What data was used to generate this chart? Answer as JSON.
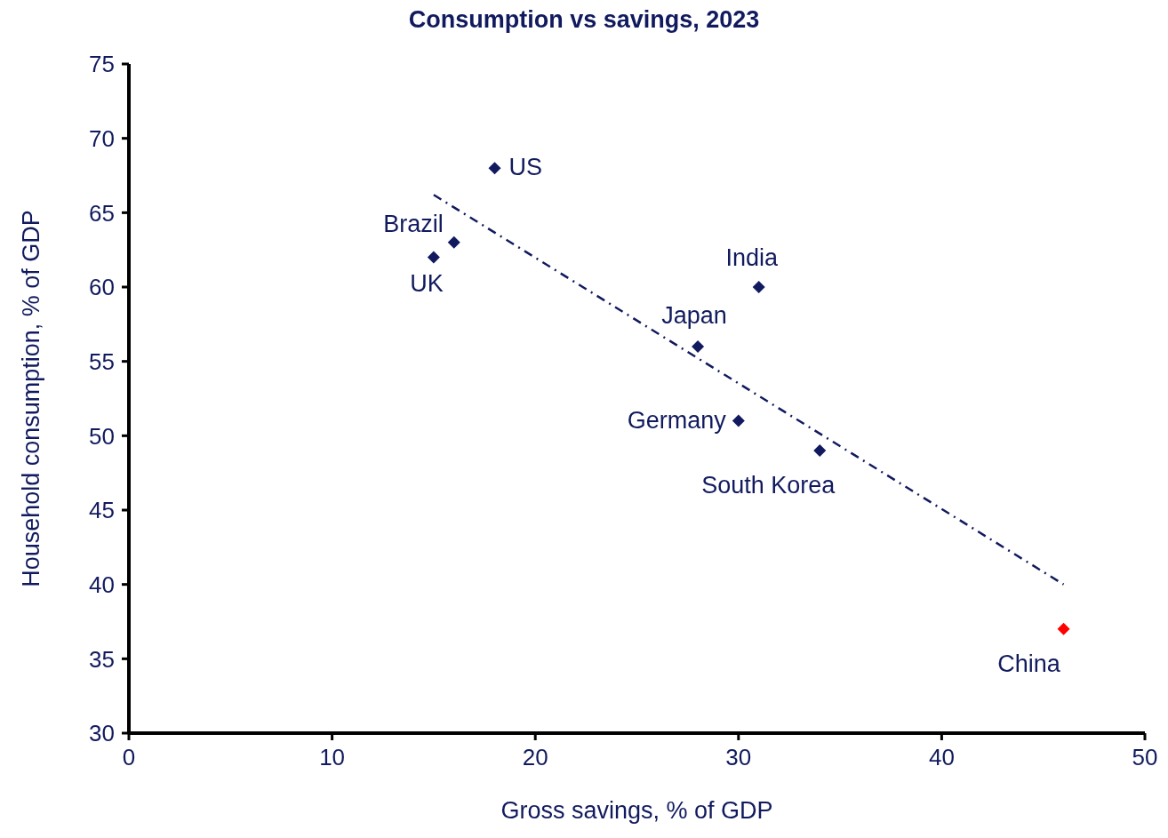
{
  "chart_data": {
    "type": "scatter",
    "title": "Consumption vs savings, 2023",
    "xlabel": "Gross savings, % of GDP",
    "ylabel": "Household consumption, % of GDP",
    "xlim": [
      0,
      50
    ],
    "xticks": [
      0,
      10,
      20,
      30,
      40,
      50
    ],
    "ylim": [
      30,
      75
    ],
    "yticks": [
      30,
      35,
      40,
      45,
      50,
      55,
      60,
      65,
      70,
      75
    ],
    "grid": false,
    "legend": false,
    "marker": "diamond",
    "series": [
      {
        "x": [
          18,
          16,
          15,
          31,
          28,
          30,
          34,
          46
        ],
        "values": [
          68,
          63,
          62,
          60,
          56,
          51,
          49,
          37
        ],
        "colors": [
          "#111a5e",
          "#111a5e",
          "#111a5e",
          "#111a5e",
          "#111a5e",
          "#111a5e",
          "#111a5e",
          "#ff0000"
        ]
      },
      {
        "type": "line",
        "x": [
          15,
          46
        ],
        "values": [
          66.2,
          40
        ],
        "color": "#111a5e",
        "line_style": "dashed",
        "marker": "none"
      }
    ],
    "annotations": [
      {
        "text": "US",
        "x": 18,
        "y": 68
      },
      {
        "text": "Brazil",
        "x": 16,
        "y": 63
      },
      {
        "text": "UK",
        "x": 15,
        "y": 62
      },
      {
        "text": "India",
        "x": 31,
        "y": 60
      },
      {
        "text": "Japan",
        "x": 28,
        "y": 56
      },
      {
        "text": "Germany",
        "x": 30,
        "y": 51
      },
      {
        "text": "South Korea",
        "x": 34,
        "y": 49
      },
      {
        "text": "China",
        "x": 46,
        "y": 37
      }
    ]
  }
}
